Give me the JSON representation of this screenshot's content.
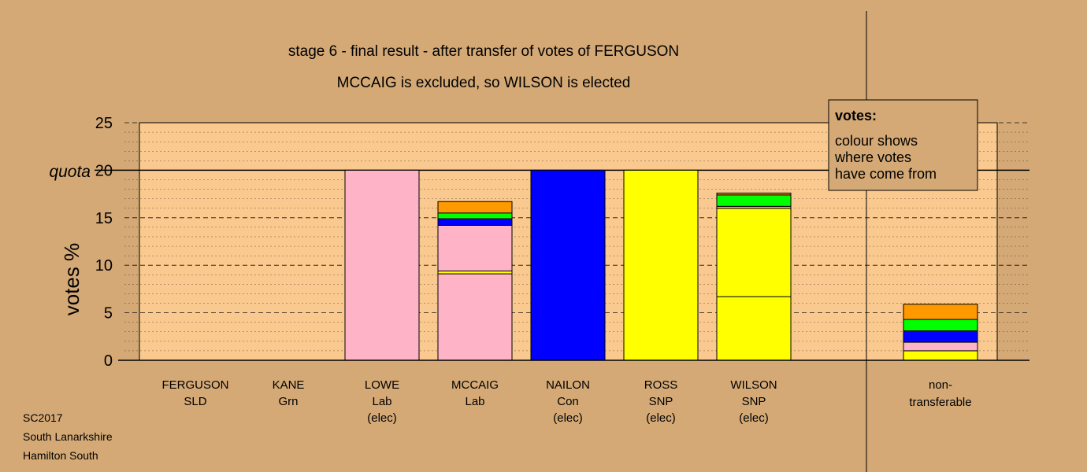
{
  "chart_data": {
    "type": "bar",
    "stacked": true,
    "title": "stage 6 - final result - after transfer of votes of FERGUSON",
    "subtitle": "MCCAIG is excluded, so WILSON is elected",
    "ylabel": "votes %",
    "ylim": [
      0,
      25
    ],
    "yticks": [
      0,
      5,
      10,
      15,
      20,
      25
    ],
    "quota": {
      "label": "quota",
      "value": 20
    },
    "grid": true,
    "colors": {
      "background": "#d4a976",
      "plot": "#fac98f",
      "Lab": "#ffb3c6",
      "Con": "#0000ff",
      "SNP": "#ffff00",
      "Grn": "#00ff00",
      "SLD": "#ff9900",
      "divider": "#000000"
    },
    "candidates": [
      {
        "name": "FERGUSON",
        "party": "SLD",
        "status": "",
        "segments": []
      },
      {
        "name": "KANE",
        "party": "Grn",
        "status": "",
        "segments": []
      },
      {
        "name": "LOWE",
        "party": "Lab",
        "status": "(elec)",
        "segments": [
          {
            "from": "Lab",
            "value": 20.0
          }
        ]
      },
      {
        "name": "MCCAIG",
        "party": "Lab",
        "status": "",
        "segments": [
          {
            "from": "Lab",
            "value": 9.1
          },
          {
            "from": "SNP",
            "value": 0.3
          },
          {
            "from": "Lab",
            "value": 4.8
          },
          {
            "from": "Con",
            "value": 0.7
          },
          {
            "from": "Grn",
            "value": 0.6
          },
          {
            "from": "SLD",
            "value": 1.2
          }
        ]
      },
      {
        "name": "NAILON",
        "party": "Con",
        "status": "(elec)",
        "segments": [
          {
            "from": "Con",
            "value": 20.0
          }
        ]
      },
      {
        "name": "ROSS",
        "party": "SNP",
        "status": "(elec)",
        "segments": [
          {
            "from": "SNP",
            "value": 20.0
          }
        ]
      },
      {
        "name": "WILSON",
        "party": "SNP",
        "status": "(elec)",
        "segments": [
          {
            "from": "SNP",
            "value": 6.7
          },
          {
            "from": "SNP",
            "value": 9.3
          },
          {
            "from": "Lab",
            "value": 0.2
          },
          {
            "from": "Grn",
            "value": 1.2
          },
          {
            "from": "SLD",
            "value": 0.2
          }
        ]
      }
    ],
    "non_transferable": {
      "label_line1": "non-",
      "label_line2": "transferable",
      "segments": [
        {
          "from": "SNP",
          "value": 1.0
        },
        {
          "from": "Lab",
          "value": 0.9
        },
        {
          "from": "Con",
          "value": 1.2
        },
        {
          "from": "Grn",
          "value": 1.2
        },
        {
          "from": "SLD",
          "value": 1.6
        }
      ]
    },
    "legend": {
      "title": "votes:",
      "lines": [
        "colour shows",
        "where votes",
        "have come from"
      ],
      "placement": "top-right"
    }
  },
  "footer": {
    "election": "SC2017",
    "council": "South Lanarkshire",
    "ward": "Hamilton South"
  }
}
